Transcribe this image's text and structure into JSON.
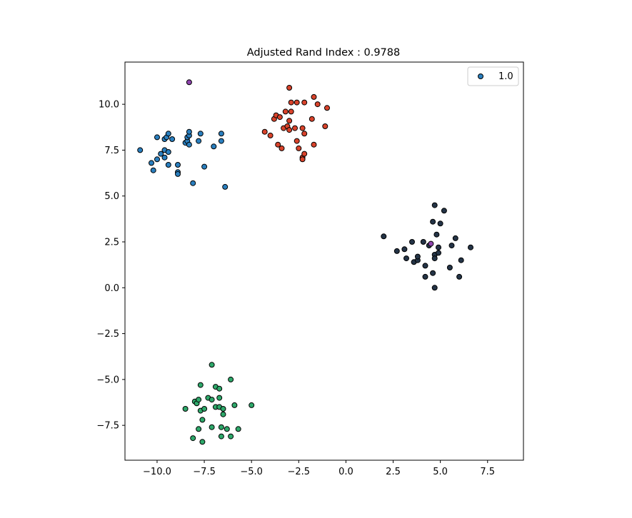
{
  "chart_data": {
    "type": "scatter",
    "title": "Adjusted Rand Index : 0.9788",
    "xlabel": "",
    "ylabel": "",
    "xlim": [
      -11.7,
      9.4
    ],
    "ylim": [
      -9.4,
      12.3
    ],
    "xticks": [
      -10.0,
      -7.5,
      -5.0,
      -2.5,
      0.0,
      2.5,
      5.0,
      7.5
    ],
    "xtick_labels": [
      "−10.0",
      "−7.5",
      "−5.0",
      "−2.5",
      "0.0",
      "2.5",
      "5.0",
      "7.5"
    ],
    "yticks": [
      -7.5,
      -5.0,
      -2.5,
      0.0,
      2.5,
      5.0,
      7.5,
      10.0
    ],
    "ytick_labels": [
      "−7.5",
      "−5.0",
      "−2.5",
      "0.0",
      "2.5",
      "5.0",
      "7.5",
      "10.0"
    ],
    "grid": false,
    "legend": {
      "position": "upper-right",
      "entries": [
        "1.0"
      ],
      "marker_color": "#2a7fbf"
    },
    "series": [
      {
        "color": "#2a7fbf",
        "points": [
          [
            -10.9,
            7.5
          ],
          [
            -10.3,
            6.8
          ],
          [
            -10.2,
            6.4
          ],
          [
            -10.0,
            8.2
          ],
          [
            -10.0,
            7.0
          ],
          [
            -9.8,
            7.3
          ],
          [
            -9.6,
            8.1
          ],
          [
            -9.6,
            7.5
          ],
          [
            -9.6,
            7.1
          ],
          [
            -9.5,
            8.2
          ],
          [
            -9.4,
            8.4
          ],
          [
            -9.4,
            7.4
          ],
          [
            -9.4,
            6.7
          ],
          [
            -9.2,
            8.1
          ],
          [
            -8.9,
            6.7
          ],
          [
            -8.9,
            6.3
          ],
          [
            -8.9,
            6.2
          ],
          [
            -8.5,
            7.9
          ],
          [
            -8.4,
            8.0
          ],
          [
            -8.4,
            8.2
          ],
          [
            -8.3,
            8.3
          ],
          [
            -8.3,
            7.8
          ],
          [
            -8.3,
            8.5
          ],
          [
            -8.1,
            5.7
          ],
          [
            -7.8,
            8.0
          ],
          [
            -7.7,
            8.4
          ],
          [
            -7.5,
            6.6
          ],
          [
            -7.0,
            7.7
          ],
          [
            -6.6,
            8.4
          ],
          [
            -6.6,
            8.0
          ],
          [
            -6.4,
            5.5
          ]
        ]
      },
      {
        "color": "#d9432b",
        "points": [
          [
            -4.3,
            8.5
          ],
          [
            -4.0,
            8.3
          ],
          [
            -3.8,
            9.2
          ],
          [
            -3.7,
            9.4
          ],
          [
            -3.6,
            7.8
          ],
          [
            -3.5,
            9.3
          ],
          [
            -3.4,
            7.6
          ],
          [
            -3.3,
            8.7
          ],
          [
            -3.2,
            9.6
          ],
          [
            -3.1,
            8.8
          ],
          [
            -3.0,
            9.1
          ],
          [
            -3.0,
            10.9
          ],
          [
            -3.0,
            8.6
          ],
          [
            -2.9,
            10.1
          ],
          [
            -2.9,
            9.6
          ],
          [
            -2.7,
            8.7
          ],
          [
            -2.6,
            10.1
          ],
          [
            -2.6,
            8.0
          ],
          [
            -2.5,
            7.6
          ],
          [
            -2.3,
            7.1
          ],
          [
            -2.3,
            8.7
          ],
          [
            -2.3,
            7.0
          ],
          [
            -2.2,
            7.3
          ],
          [
            -2.2,
            8.4
          ],
          [
            -2.2,
            10.1
          ],
          [
            -1.8,
            9.2
          ],
          [
            -1.7,
            10.4
          ],
          [
            -1.7,
            7.8
          ],
          [
            -1.5,
            10.0
          ],
          [
            -1.1,
            8.8
          ],
          [
            -1.0,
            9.8
          ]
        ]
      },
      {
        "color": "#2ea86a",
        "points": [
          [
            -8.5,
            -6.6
          ],
          [
            -8.1,
            -8.2
          ],
          [
            -8.0,
            -6.2
          ],
          [
            -7.9,
            -6.3
          ],
          [
            -7.8,
            -6.1
          ],
          [
            -7.8,
            -7.7
          ],
          [
            -7.7,
            -5.3
          ],
          [
            -7.7,
            -6.7
          ],
          [
            -7.6,
            -8.4
          ],
          [
            -7.6,
            -7.2
          ],
          [
            -7.5,
            -6.6
          ],
          [
            -7.3,
            -6.0
          ],
          [
            -7.1,
            -7.6
          ],
          [
            -7.1,
            -4.2
          ],
          [
            -7.1,
            -6.1
          ],
          [
            -6.9,
            -5.4
          ],
          [
            -6.9,
            -6.5
          ],
          [
            -6.7,
            -5.5
          ],
          [
            -6.7,
            -6.0
          ],
          [
            -6.7,
            -6.5
          ],
          [
            -6.6,
            -8.1
          ],
          [
            -6.6,
            -7.6
          ],
          [
            -6.5,
            -6.6
          ],
          [
            -6.5,
            -6.9
          ],
          [
            -6.3,
            -7.7
          ],
          [
            -6.1,
            -5.0
          ],
          [
            -6.1,
            -8.1
          ],
          [
            -5.9,
            -6.4
          ],
          [
            -5.7,
            -7.7
          ],
          [
            -5.0,
            -6.4
          ]
        ]
      },
      {
        "color": "#243447",
        "points": [
          [
            2.0,
            2.8
          ],
          [
            2.7,
            2.0
          ],
          [
            3.1,
            2.1
          ],
          [
            3.2,
            1.6
          ],
          [
            3.5,
            2.5
          ],
          [
            3.6,
            1.4
          ],
          [
            3.8,
            1.5
          ],
          [
            3.8,
            1.7
          ],
          [
            4.1,
            2.5
          ],
          [
            4.2,
            1.2
          ],
          [
            4.2,
            0.6
          ],
          [
            4.4,
            2.3
          ],
          [
            4.6,
            0.8
          ],
          [
            4.6,
            3.6
          ],
          [
            4.7,
            1.8
          ],
          [
            4.7,
            4.5
          ],
          [
            4.7,
            0.0
          ],
          [
            4.7,
            1.6
          ],
          [
            4.8,
            2.9
          ],
          [
            4.9,
            2.2
          ],
          [
            4.9,
            1.9
          ],
          [
            5.0,
            3.5
          ],
          [
            5.2,
            4.2
          ],
          [
            5.5,
            1.1
          ],
          [
            5.6,
            2.3
          ],
          [
            5.8,
            2.7
          ],
          [
            6.0,
            0.6
          ],
          [
            6.1,
            1.5
          ],
          [
            6.6,
            2.2
          ]
        ]
      },
      {
        "color": "#8e44ad",
        "points": [
          [
            -8.3,
            11.2
          ],
          [
            4.5,
            2.4
          ]
        ]
      }
    ]
  }
}
